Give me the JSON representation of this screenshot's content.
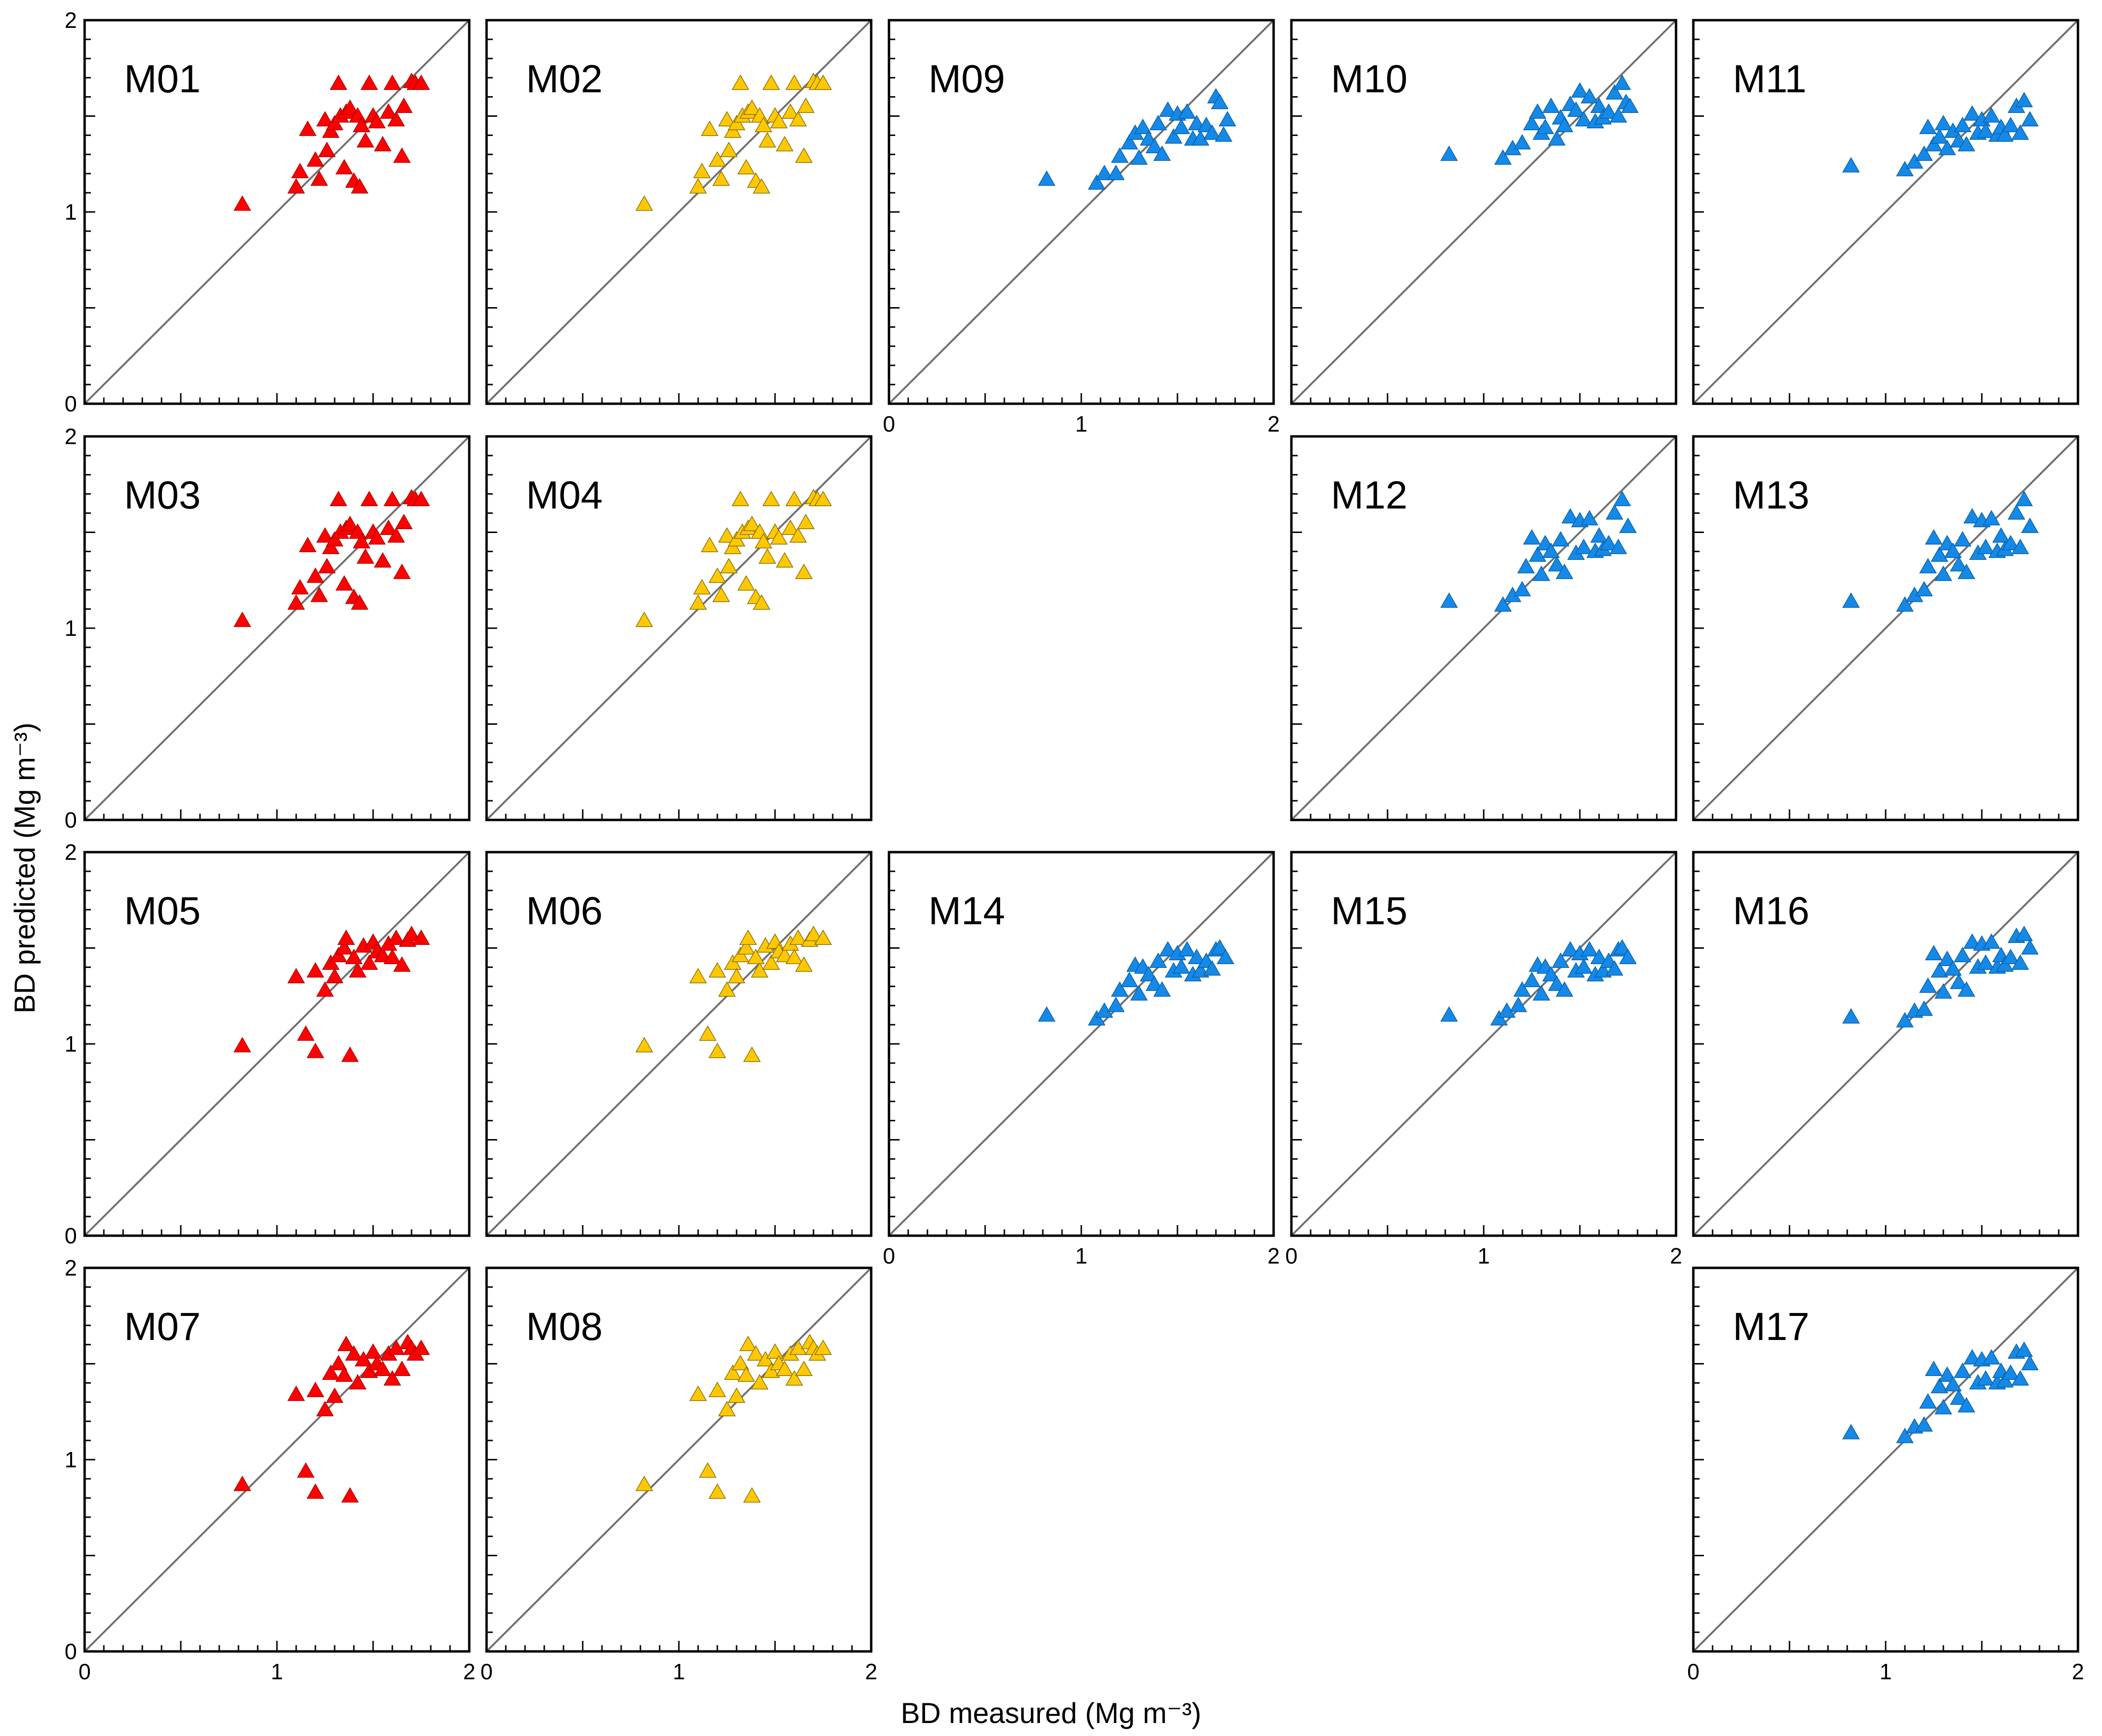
{
  "chart_data": {
    "type": "scatter",
    "xlabel": "BD measured (Mg m⁻³)",
    "ylabel": "BD predicted (Mg m⁻³)",
    "xlim": [
      0,
      2
    ],
    "ylim": [
      0,
      2
    ],
    "ticks": [
      "0",
      "1",
      "2"
    ],
    "reference_line": "1:1",
    "colors": {
      "red": "#ff0000",
      "yellow": "#ffc800",
      "blue": "#1489e8"
    },
    "panels": [
      {
        "label": "M01",
        "row": 0,
        "col": 0,
        "color": "red",
        "variant": 0,
        "show_y": true,
        "show_x": false
      },
      {
        "label": "M02",
        "row": 0,
        "col": 1,
        "color": "yellow",
        "variant": 0,
        "show_y": false,
        "show_x": false
      },
      {
        "label": "M09",
        "row": 0,
        "col": 2,
        "color": "blue",
        "variant": 2,
        "show_y": false,
        "show_x": true
      },
      {
        "label": "M10",
        "row": 0,
        "col": 3,
        "color": "blue",
        "variant": 3,
        "show_y": false,
        "show_x": false
      },
      {
        "label": "M11",
        "row": 0,
        "col": 4,
        "color": "blue",
        "variant": 4,
        "show_y": false,
        "show_x": false
      },
      {
        "label": "M03",
        "row": 1,
        "col": 0,
        "color": "red",
        "variant": 0,
        "show_y": true,
        "show_x": false
      },
      {
        "label": "M04",
        "row": 1,
        "col": 1,
        "color": "yellow",
        "variant": 0,
        "show_y": false,
        "show_x": false
      },
      {
        "label": "M12",
        "row": 1,
        "col": 3,
        "color": "blue",
        "variant": 5,
        "show_y": false,
        "show_x": false
      },
      {
        "label": "M13",
        "row": 1,
        "col": 4,
        "color": "blue",
        "variant": 5,
        "show_y": false,
        "show_x": false
      },
      {
        "label": "M05",
        "row": 2,
        "col": 0,
        "color": "red",
        "variant": 1,
        "show_y": true,
        "show_x": false
      },
      {
        "label": "M06",
        "row": 2,
        "col": 1,
        "color": "yellow",
        "variant": 1,
        "show_y": false,
        "show_x": false
      },
      {
        "label": "M14",
        "row": 2,
        "col": 2,
        "color": "blue",
        "variant": 6,
        "show_y": false,
        "show_x": true
      },
      {
        "label": "M15",
        "row": 2,
        "col": 3,
        "color": "blue",
        "variant": 6,
        "show_y": false,
        "show_x": true
      },
      {
        "label": "M16",
        "row": 2,
        "col": 4,
        "color": "blue",
        "variant": 7,
        "show_y": false,
        "show_x": false
      },
      {
        "label": "M07",
        "row": 3,
        "col": 0,
        "color": "red",
        "variant": 8,
        "show_y": true,
        "show_x": true
      },
      {
        "label": "M08",
        "row": 3,
        "col": 1,
        "color": "yellow",
        "variant": 8,
        "show_y": false,
        "show_x": true
      },
      {
        "label": "M17",
        "row": 3,
        "col": 4,
        "color": "blue",
        "variant": 7,
        "show_y": false,
        "show_x": true
      }
    ],
    "series": [
      {
        "variant": 0,
        "points": [
          [
            0.82,
            1.04
          ],
          [
            1.1,
            1.13
          ],
          [
            1.12,
            1.21
          ],
          [
            1.16,
            1.43
          ],
          [
            1.2,
            1.27
          ],
          [
            1.22,
            1.17
          ],
          [
            1.25,
            1.48
          ],
          [
            1.26,
            1.32
          ],
          [
            1.28,
            1.42
          ],
          [
            1.3,
            1.46
          ],
          [
            1.32,
            1.67
          ],
          [
            1.33,
            1.5
          ],
          [
            1.35,
            1.23
          ],
          [
            1.36,
            1.52
          ],
          [
            1.38,
            1.54
          ],
          [
            1.4,
            1.16
          ],
          [
            1.42,
            1.5
          ],
          [
            1.43,
            1.13
          ],
          [
            1.44,
            1.45
          ],
          [
            1.46,
            1.37
          ],
          [
            1.48,
            1.67
          ],
          [
            1.5,
            1.5
          ],
          [
            1.52,
            1.47
          ],
          [
            1.55,
            1.35
          ],
          [
            1.58,
            1.52
          ],
          [
            1.6,
            1.67
          ],
          [
            1.62,
            1.48
          ],
          [
            1.65,
            1.29
          ],
          [
            1.66,
            1.55
          ],
          [
            1.7,
            1.68
          ],
          [
            1.72,
            1.67
          ],
          [
            1.75,
            1.67
          ]
        ]
      },
      {
        "variant": 1,
        "points": [
          [
            0.82,
            0.99
          ],
          [
            1.1,
            1.35
          ],
          [
            1.15,
            1.05
          ],
          [
            1.2,
            0.96
          ],
          [
            1.2,
            1.38
          ],
          [
            1.25,
            1.28
          ],
          [
            1.28,
            1.42
          ],
          [
            1.3,
            1.35
          ],
          [
            1.32,
            1.46
          ],
          [
            1.35,
            1.5
          ],
          [
            1.36,
            1.55
          ],
          [
            1.38,
            0.94
          ],
          [
            1.4,
            1.45
          ],
          [
            1.42,
            1.38
          ],
          [
            1.45,
            1.51
          ],
          [
            1.48,
            1.42
          ],
          [
            1.5,
            1.53
          ],
          [
            1.52,
            1.48
          ],
          [
            1.55,
            1.46
          ],
          [
            1.58,
            1.52
          ],
          [
            1.6,
            1.45
          ],
          [
            1.62,
            1.55
          ],
          [
            1.65,
            1.41
          ],
          [
            1.68,
            1.54
          ],
          [
            1.7,
            1.57
          ],
          [
            1.75,
            1.55
          ]
        ]
      },
      {
        "variant": 2,
        "points": [
          [
            0.82,
            1.17
          ],
          [
            1.08,
            1.15
          ],
          [
            1.12,
            1.2
          ],
          [
            1.18,
            1.2
          ],
          [
            1.2,
            1.29
          ],
          [
            1.25,
            1.36
          ],
          [
            1.28,
            1.41
          ],
          [
            1.3,
            1.28
          ],
          [
            1.32,
            1.44
          ],
          [
            1.35,
            1.38
          ],
          [
            1.38,
            1.34
          ],
          [
            1.4,
            1.46
          ],
          [
            1.42,
            1.3
          ],
          [
            1.45,
            1.53
          ],
          [
            1.48,
            1.39
          ],
          [
            1.5,
            1.51
          ],
          [
            1.52,
            1.44
          ],
          [
            1.55,
            1.52
          ],
          [
            1.58,
            1.38
          ],
          [
            1.6,
            1.46
          ],
          [
            1.62,
            1.38
          ],
          [
            1.65,
            1.45
          ],
          [
            1.68,
            1.41
          ],
          [
            1.7,
            1.6
          ],
          [
            1.72,
            1.57
          ],
          [
            1.74,
            1.4
          ],
          [
            1.76,
            1.48
          ]
        ]
      },
      {
        "variant": 3,
        "points": [
          [
            0.82,
            1.3
          ],
          [
            1.1,
            1.28
          ],
          [
            1.15,
            1.33
          ],
          [
            1.2,
            1.36
          ],
          [
            1.25,
            1.46
          ],
          [
            1.28,
            1.52
          ],
          [
            1.3,
            1.41
          ],
          [
            1.32,
            1.44
          ],
          [
            1.35,
            1.55
          ],
          [
            1.38,
            1.38
          ],
          [
            1.4,
            1.49
          ],
          [
            1.42,
            1.45
          ],
          [
            1.45,
            1.56
          ],
          [
            1.48,
            1.53
          ],
          [
            1.5,
            1.63
          ],
          [
            1.52,
            1.48
          ],
          [
            1.55,
            1.6
          ],
          [
            1.58,
            1.47
          ],
          [
            1.6,
            1.55
          ],
          [
            1.62,
            1.49
          ],
          [
            1.65,
            1.52
          ],
          [
            1.68,
            1.62
          ],
          [
            1.7,
            1.5
          ],
          [
            1.72,
            1.67
          ],
          [
            1.74,
            1.57
          ],
          [
            1.76,
            1.55
          ]
        ]
      },
      {
        "variant": 4,
        "points": [
          [
            0.82,
            1.24
          ],
          [
            1.1,
            1.22
          ],
          [
            1.15,
            1.26
          ],
          [
            1.2,
            1.3
          ],
          [
            1.22,
            1.44
          ],
          [
            1.25,
            1.35
          ],
          [
            1.28,
            1.39
          ],
          [
            1.3,
            1.46
          ],
          [
            1.32,
            1.33
          ],
          [
            1.35,
            1.42
          ],
          [
            1.38,
            1.37
          ],
          [
            1.4,
            1.45
          ],
          [
            1.42,
            1.35
          ],
          [
            1.45,
            1.51
          ],
          [
            1.48,
            1.41
          ],
          [
            1.5,
            1.48
          ],
          [
            1.52,
            1.42
          ],
          [
            1.55,
            1.5
          ],
          [
            1.58,
            1.4
          ],
          [
            1.6,
            1.44
          ],
          [
            1.62,
            1.4
          ],
          [
            1.65,
            1.45
          ],
          [
            1.68,
            1.55
          ],
          [
            1.7,
            1.41
          ],
          [
            1.72,
            1.58
          ],
          [
            1.75,
            1.48
          ]
        ]
      },
      {
        "variant": 5,
        "points": [
          [
            0.82,
            1.14
          ],
          [
            1.1,
            1.12
          ],
          [
            1.15,
            1.17
          ],
          [
            1.2,
            1.2
          ],
          [
            1.22,
            1.32
          ],
          [
            1.25,
            1.47
          ],
          [
            1.28,
            1.38
          ],
          [
            1.3,
            1.28
          ],
          [
            1.32,
            1.44
          ],
          [
            1.35,
            1.4
          ],
          [
            1.38,
            1.33
          ],
          [
            1.4,
            1.46
          ],
          [
            1.42,
            1.29
          ],
          [
            1.45,
            1.58
          ],
          [
            1.48,
            1.39
          ],
          [
            1.5,
            1.56
          ],
          [
            1.52,
            1.42
          ],
          [
            1.55,
            1.57
          ],
          [
            1.58,
            1.4
          ],
          [
            1.6,
            1.48
          ],
          [
            1.62,
            1.41
          ],
          [
            1.65,
            1.44
          ],
          [
            1.68,
            1.6
          ],
          [
            1.7,
            1.42
          ],
          [
            1.72,
            1.67
          ],
          [
            1.75,
            1.53
          ]
        ]
      },
      {
        "variant": 6,
        "points": [
          [
            0.82,
            1.15
          ],
          [
            1.08,
            1.13
          ],
          [
            1.12,
            1.17
          ],
          [
            1.18,
            1.2
          ],
          [
            1.2,
            1.28
          ],
          [
            1.25,
            1.33
          ],
          [
            1.28,
            1.41
          ],
          [
            1.3,
            1.26
          ],
          [
            1.32,
            1.4
          ],
          [
            1.35,
            1.36
          ],
          [
            1.38,
            1.31
          ],
          [
            1.4,
            1.43
          ],
          [
            1.42,
            1.28
          ],
          [
            1.45,
            1.49
          ],
          [
            1.48,
            1.38
          ],
          [
            1.5,
            1.47
          ],
          [
            1.52,
            1.4
          ],
          [
            1.55,
            1.49
          ],
          [
            1.58,
            1.36
          ],
          [
            1.6,
            1.45
          ],
          [
            1.62,
            1.38
          ],
          [
            1.65,
            1.43
          ],
          [
            1.68,
            1.39
          ],
          [
            1.7,
            1.49
          ],
          [
            1.72,
            1.5
          ],
          [
            1.75,
            1.45
          ]
        ]
      },
      {
        "variant": 7,
        "points": [
          [
            0.82,
            1.14
          ],
          [
            1.1,
            1.12
          ],
          [
            1.15,
            1.17
          ],
          [
            1.2,
            1.18
          ],
          [
            1.22,
            1.3
          ],
          [
            1.25,
            1.47
          ],
          [
            1.28,
            1.38
          ],
          [
            1.3,
            1.27
          ],
          [
            1.32,
            1.44
          ],
          [
            1.35,
            1.39
          ],
          [
            1.38,
            1.32
          ],
          [
            1.4,
            1.46
          ],
          [
            1.42,
            1.28
          ],
          [
            1.45,
            1.53
          ],
          [
            1.48,
            1.4
          ],
          [
            1.5,
            1.52
          ],
          [
            1.52,
            1.42
          ],
          [
            1.55,
            1.53
          ],
          [
            1.58,
            1.4
          ],
          [
            1.6,
            1.46
          ],
          [
            1.62,
            1.41
          ],
          [
            1.65,
            1.45
          ],
          [
            1.68,
            1.56
          ],
          [
            1.7,
            1.42
          ],
          [
            1.72,
            1.57
          ],
          [
            1.75,
            1.5
          ]
        ]
      },
      {
        "variant": 8,
        "points": [
          [
            0.82,
            0.87
          ],
          [
            1.1,
            1.34
          ],
          [
            1.15,
            0.94
          ],
          [
            1.2,
            0.83
          ],
          [
            1.2,
            1.36
          ],
          [
            1.25,
            1.26
          ],
          [
            1.28,
            1.45
          ],
          [
            1.3,
            1.33
          ],
          [
            1.32,
            1.5
          ],
          [
            1.35,
            1.44
          ],
          [
            1.36,
            1.6
          ],
          [
            1.38,
            0.81
          ],
          [
            1.4,
            1.55
          ],
          [
            1.42,
            1.4
          ],
          [
            1.45,
            1.52
          ],
          [
            1.48,
            1.46
          ],
          [
            1.5,
            1.56
          ],
          [
            1.52,
            1.5
          ],
          [
            1.55,
            1.47
          ],
          [
            1.58,
            1.55
          ],
          [
            1.6,
            1.42
          ],
          [
            1.62,
            1.58
          ],
          [
            1.65,
            1.47
          ],
          [
            1.68,
            1.61
          ],
          [
            1.7,
            1.58
          ],
          [
            1.72,
            1.55
          ],
          [
            1.75,
            1.58
          ]
        ]
      }
    ]
  }
}
